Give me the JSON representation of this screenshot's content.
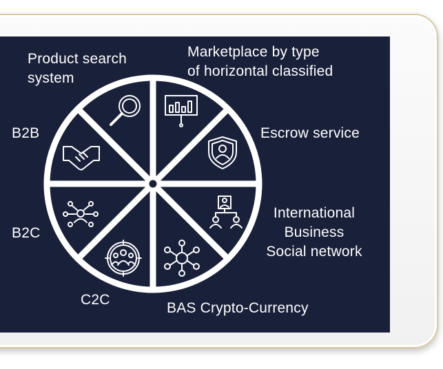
{
  "diagram": {
    "colors": {
      "screen": "#192039",
      "wheel_stroke": "#ffffff",
      "device_frame": "#f3f3f3",
      "device_trim": "#dcc9a0"
    },
    "segments": [
      {
        "label": "Product search\nsystem",
        "icon": "magnifier-icon"
      },
      {
        "label": "Marketplace by type\nof horizontal classified",
        "icon": "presentation-board-icon"
      },
      {
        "label": "Escrow service",
        "icon": "shield-user-icon"
      },
      {
        "label": "International\n Business\nSocial network",
        "icon": "org-chart-icon"
      },
      {
        "label": "BAS Crypto-Currency",
        "icon": "crypto-network-icon"
      },
      {
        "label": "C2C",
        "icon": "group-target-icon"
      },
      {
        "label": "B2C",
        "icon": "people-network-icon"
      },
      {
        "label": "B2B",
        "icon": "handshake-icon"
      }
    ]
  }
}
